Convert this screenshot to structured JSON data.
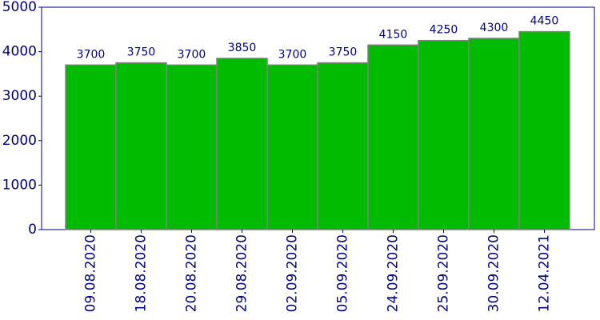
{
  "chart_data": {
    "type": "bar",
    "categories": [
      "09.08.2020",
      "18.08.2020",
      "20.08.2020",
      "29.08.2020",
      "02.09.2020",
      "05.09.2020",
      "24.09.2020",
      "25.09.2020",
      "30.09.2020",
      "12.04.2021"
    ],
    "values": [
      3700,
      3750,
      3700,
      3850,
      3700,
      3750,
      4150,
      4250,
      4300,
      4450
    ],
    "color": "#00bb00",
    "ylim": [
      0,
      5000
    ],
    "yticks": [
      0,
      1000,
      2000,
      3000,
      4000,
      5000
    ],
    "grid": false
  }
}
